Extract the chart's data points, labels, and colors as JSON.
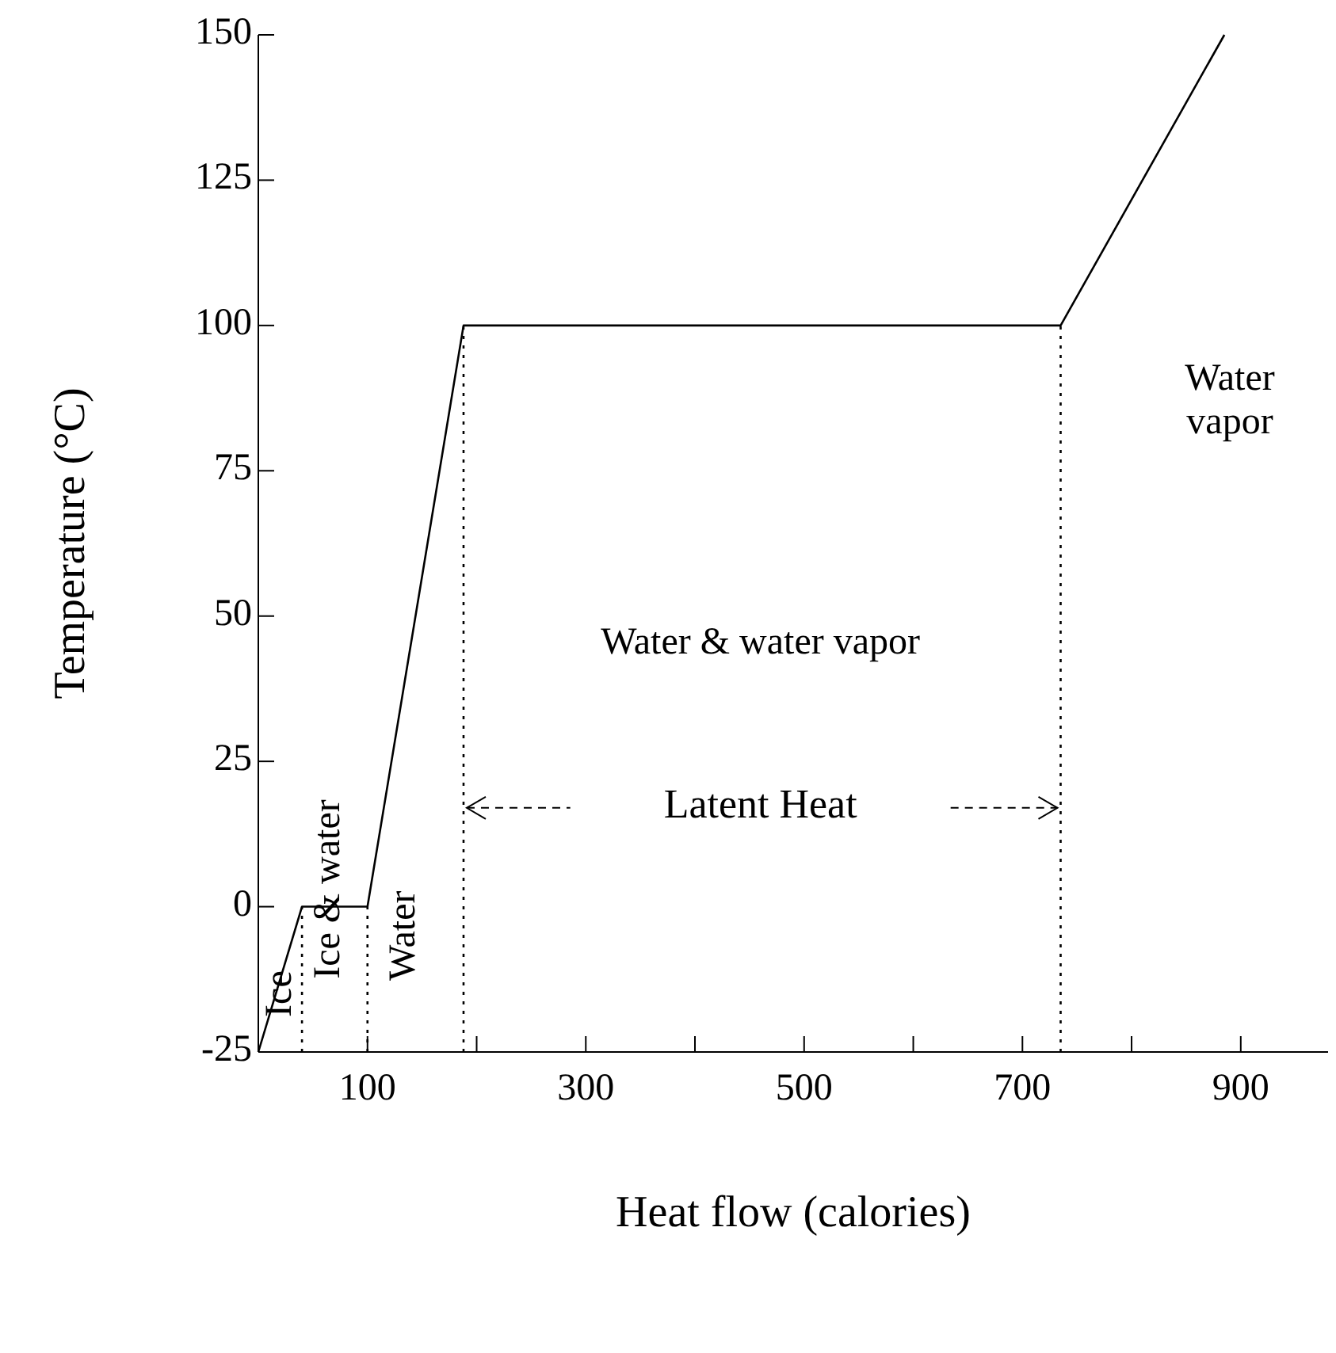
{
  "chart_data": {
    "type": "line",
    "xlabel": "Heat flow (calories)",
    "ylabel": "Temperature (°C)",
    "xlim": [
      0,
      980
    ],
    "ylim": [
      -25,
      150
    ],
    "xticks": [
      100,
      {
        "value": 200,
        "label": null
      },
      300,
      {
        "value": 400,
        "label": null
      },
      500,
      {
        "value": 600,
        "label": null
      },
      700,
      {
        "value": 800,
        "label": null
      },
      900
    ],
    "yticks": [
      -25,
      0,
      25,
      50,
      75,
      100,
      125,
      150
    ],
    "grid": false,
    "marker": "none",
    "series": [
      {
        "x": [
          0,
          40,
          100,
          188,
          735,
          885
        ],
        "values": [
          -25,
          0,
          0,
          100,
          100,
          150
        ],
        "color": "#000000",
        "line_style": "solid"
      },
      {
        "x": [
          40,
          40
        ],
        "values": [
          -25,
          0
        ],
        "color": "#000000",
        "line_style": "dotted"
      },
      {
        "x": [
          100,
          100
        ],
        "values": [
          -25,
          0
        ],
        "color": "#000000",
        "line_style": "dotted"
      },
      {
        "x": [
          188,
          188
        ],
        "values": [
          -25,
          100
        ],
        "color": "#000000",
        "line_style": "dotted"
      },
      {
        "x": [
          735,
          735
        ],
        "values": [
          -25,
          100
        ],
        "color": "#000000",
        "line_style": "dotted"
      }
    ],
    "annotations": [
      "Ice",
      "Ice & water",
      "Water",
      "Water & water vapor",
      "Latent Heat",
      "Water vapor"
    ]
  }
}
